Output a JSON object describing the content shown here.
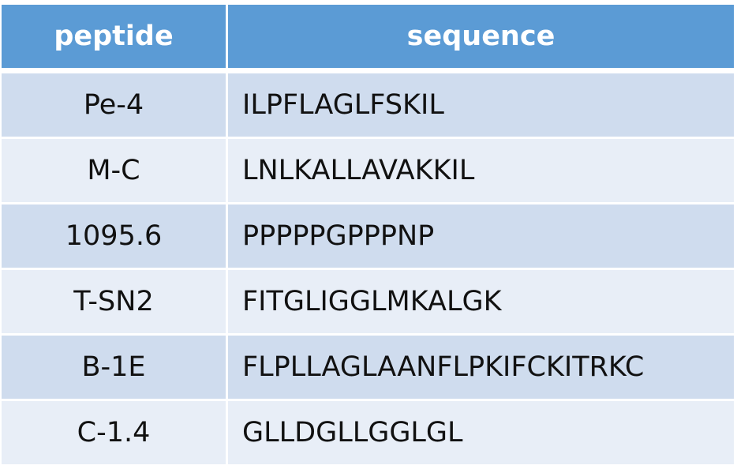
{
  "table": {
    "headers": [
      "peptide",
      "sequence"
    ],
    "rows": [
      {
        "peptide": "Pe-4",
        "sequence": "ILPFLAGLFSKIL"
      },
      {
        "peptide": "M-C",
        "sequence": "LNLKALLAVAKKIL"
      },
      {
        "peptide": "1095.6",
        "sequence": "PPPPPGPPPNP"
      },
      {
        "peptide": "T-SN2",
        "sequence": "FITGLIGGLMKALGK"
      },
      {
        "peptide": "B-1E",
        "sequence": "FLPLLAGLAANFLPKIFCKITRKC"
      },
      {
        "peptide": "C-1.4",
        "sequence": "GLLDGLLGGLGL"
      }
    ]
  },
  "colors": {
    "header_bg": "#5b9bd5",
    "row_odd_bg": "#cfdcee",
    "row_even_bg": "#e8eef7"
  }
}
